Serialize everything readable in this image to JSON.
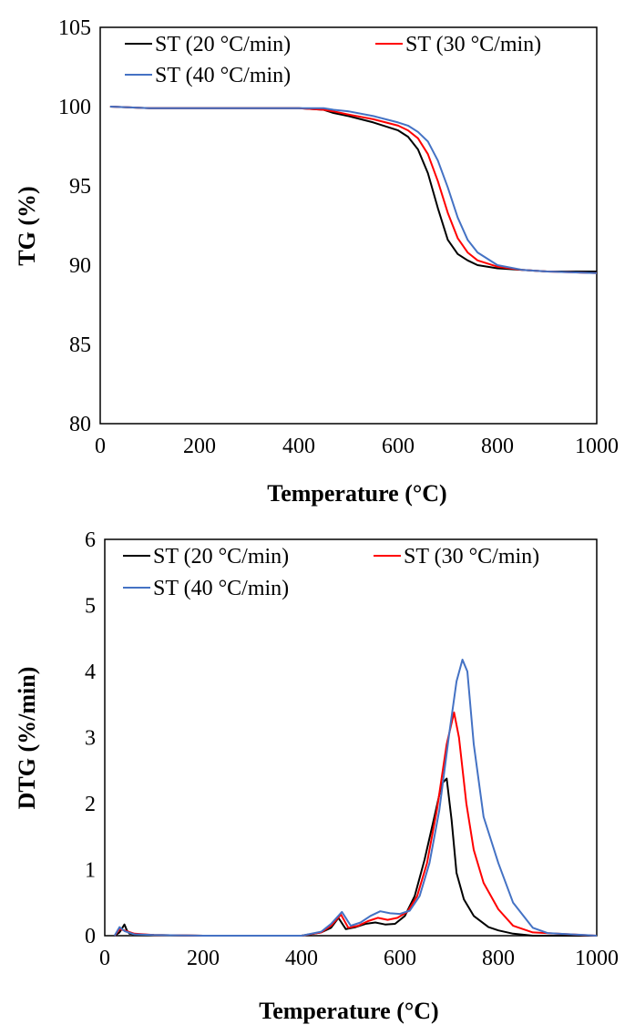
{
  "chart_data": [
    {
      "type": "line",
      "title": "",
      "xlabel": "Temperature (°C)",
      "ylabel": "TG (%)",
      "xlim": [
        0,
        1000
      ],
      "ylim": [
        80,
        105
      ],
      "xticks": [
        "0",
        "200",
        "400",
        "600",
        "800",
        "1000"
      ],
      "yticks": [
        "80",
        "85",
        "90",
        "95",
        "100",
        "105"
      ],
      "legend": [
        "ST (20 °C/min)",
        "ST (30 °C/min)",
        "ST (40 °C/min)"
      ],
      "series": [
        {
          "name": "ST (20 °C/min)",
          "color": "#000000",
          "x": [
            20,
            100,
            200,
            300,
            400,
            450,
            470,
            500,
            550,
            600,
            620,
            640,
            660,
            680,
            700,
            720,
            740,
            760,
            800,
            850,
            900,
            1000
          ],
          "y": [
            100.0,
            99.9,
            99.9,
            99.9,
            99.9,
            99.8,
            99.6,
            99.4,
            99.0,
            98.5,
            98.1,
            97.3,
            95.8,
            93.6,
            91.6,
            90.7,
            90.3,
            90.0,
            89.8,
            89.7,
            89.6,
            89.6
          ]
        },
        {
          "name": "ST (30 °C/min)",
          "color": "#ff0000",
          "x": [
            20,
            100,
            200,
            300,
            400,
            450,
            470,
            500,
            550,
            600,
            620,
            640,
            660,
            680,
            700,
            720,
            740,
            760,
            800,
            850,
            900,
            1000
          ],
          "y": [
            100.0,
            99.9,
            99.9,
            99.9,
            99.9,
            99.8,
            99.7,
            99.5,
            99.2,
            98.8,
            98.5,
            98.0,
            97.0,
            95.3,
            93.3,
            91.7,
            90.8,
            90.3,
            89.9,
            89.7,
            89.6,
            89.5
          ]
        },
        {
          "name": "ST (40 °C/min)",
          "color": "#4472c4",
          "x": [
            20,
            100,
            200,
            300,
            400,
            450,
            470,
            500,
            550,
            600,
            620,
            640,
            660,
            680,
            700,
            720,
            740,
            760,
            800,
            850,
            900,
            1000
          ],
          "y": [
            100.0,
            99.9,
            99.9,
            99.9,
            99.9,
            99.9,
            99.8,
            99.7,
            99.4,
            99.0,
            98.8,
            98.4,
            97.8,
            96.6,
            94.9,
            93.0,
            91.6,
            90.8,
            90.0,
            89.7,
            89.6,
            89.5
          ]
        }
      ]
    },
    {
      "type": "line",
      "title": "",
      "xlabel": "Temperature (°C)",
      "ylabel": "DTG (%/min)",
      "xlim": [
        0,
        1000
      ],
      "ylim": [
        0,
        6
      ],
      "xticks": [
        "0",
        "200",
        "400",
        "600",
        "800",
        "1000"
      ],
      "yticks": [
        "0",
        "1",
        "2",
        "3",
        "4",
        "5",
        "6"
      ],
      "legend": [
        "ST (20 °C/min)",
        "ST (30 °C/min)",
        "ST (40 °C/min)"
      ],
      "series": [
        {
          "name": "ST (20 °C/min)",
          "color": "#000000",
          "x": [
            20,
            30,
            40,
            45,
            50,
            60,
            100,
            200,
            300,
            400,
            440,
            460,
            475,
            490,
            510,
            530,
            550,
            570,
            590,
            610,
            630,
            650,
            670,
            685,
            695,
            705,
            715,
            730,
            750,
            780,
            800,
            830,
            870,
            1000
          ],
          "y": [
            0.0,
            0.05,
            0.17,
            0.08,
            0.03,
            0.02,
            0.01,
            0.0,
            0.0,
            0.0,
            0.05,
            0.12,
            0.27,
            0.1,
            0.13,
            0.18,
            0.2,
            0.17,
            0.18,
            0.3,
            0.6,
            1.15,
            1.8,
            2.3,
            2.38,
            1.75,
            0.95,
            0.55,
            0.3,
            0.13,
            0.08,
            0.03,
            0.0,
            0.0
          ]
        },
        {
          "name": "ST (30 °C/min)",
          "color": "#ff0000",
          "x": [
            20,
            30,
            40,
            60,
            100,
            200,
            300,
            400,
            440,
            460,
            480,
            495,
            515,
            535,
            555,
            575,
            595,
            615,
            635,
            655,
            675,
            695,
            710,
            720,
            735,
            750,
            770,
            800,
            830,
            870,
            1000
          ],
          "y": [
            0.0,
            0.1,
            0.08,
            0.03,
            0.01,
            0.0,
            0.0,
            0.0,
            0.05,
            0.15,
            0.32,
            0.12,
            0.15,
            0.22,
            0.27,
            0.24,
            0.27,
            0.36,
            0.6,
            1.1,
            1.9,
            2.9,
            3.38,
            3.0,
            2.0,
            1.3,
            0.8,
            0.4,
            0.15,
            0.05,
            0.0
          ]
        },
        {
          "name": "ST (40 °C/min)",
          "color": "#4472c4",
          "x": [
            20,
            30,
            40,
            60,
            100,
            200,
            300,
            400,
            440,
            460,
            482,
            500,
            520,
            540,
            560,
            580,
            600,
            620,
            640,
            660,
            680,
            700,
            715,
            727,
            737,
            750,
            770,
            800,
            830,
            870,
            900,
            1000
          ],
          "y": [
            0.0,
            0.13,
            0.07,
            0.02,
            0.01,
            0.0,
            0.0,
            0.0,
            0.06,
            0.18,
            0.36,
            0.15,
            0.2,
            0.3,
            0.37,
            0.34,
            0.33,
            0.38,
            0.6,
            1.1,
            1.9,
            3.05,
            3.85,
            4.18,
            4.0,
            2.9,
            1.8,
            1.1,
            0.5,
            0.12,
            0.04,
            0.0
          ]
        }
      ]
    }
  ]
}
